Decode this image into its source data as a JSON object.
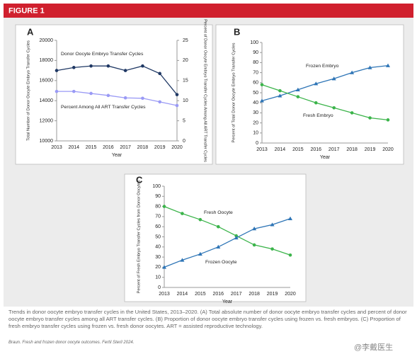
{
  "header": "FIGURE 1",
  "caption": "Trends in donor oocyte embryo transfer cycles in the United States, 2013–2020. (A) Total absolute number of donor oocyte embryo transfer cycles and percent of donor oocyte embryo transfer cycles among all ART transfer cycles. (B) Proportion of donor oocyte embryo transfer cycles using frozen vs. fresh embryos. (C) Proportion of fresh embryo transfer cycles using frozen vs. fresh donor oocytes. ART = assisted reproductive technology.",
  "citation": "Braun. Fresh and frozen donor oocyte outcomes. Fertil Steril 2024.",
  "watermark": "@李戴医生",
  "chart_data": [
    {
      "type": "line",
      "panel": "A",
      "x_label": "Year",
      "y_label": "Total Number of Donor Oocyte Embryo Transfer Cycles",
      "y2_label": "Percent of Donor Oocyte Embryo Transfer Cycles Among All ART Transfer Cycles",
      "categories": [
        "2013",
        "2014",
        "2015",
        "2016",
        "2017",
        "2018",
        "2019",
        "2020"
      ],
      "ylim": [
        10000,
        20000
      ],
      "yticks": [
        10000,
        12000,
        14000,
        16000,
        18000,
        20000
      ],
      "y2lim": [
        0,
        25
      ],
      "y2ticks": [
        0,
        5,
        10,
        15,
        20,
        25
      ],
      "series": [
        {
          "name": "Donor Oocyte Embryo Transfer Cycles",
          "color": "#1f3864",
          "marker": "circle",
          "values": [
            17000,
            17300,
            17450,
            17450,
            17000,
            17450,
            16700,
            14600
          ]
        },
        {
          "name": "Percent Among All ART Transfer Cycles",
          "color": "#9a9af5",
          "marker": "circle",
          "axis": "y2",
          "values": [
            12.3,
            12.3,
            11.8,
            11.3,
            10.7,
            10.6,
            9.7,
            8.8
          ]
        }
      ]
    },
    {
      "type": "line",
      "panel": "B",
      "x_label": "Year",
      "y_label": "Percent of Total Donor Oocyte Embryo Transfer Cycles",
      "categories": [
        "2013",
        "2014",
        "2015",
        "2016",
        "2017",
        "2018",
        "2019",
        "2020"
      ],
      "ylim": [
        0,
        100
      ],
      "yticks": [
        0,
        10,
        20,
        30,
        40,
        50,
        60,
        70,
        80,
        90,
        100
      ],
      "series": [
        {
          "name": "Frozen Embryo",
          "color": "#2e75b6",
          "marker": "triangle",
          "values": [
            42,
            47,
            53,
            59,
            64,
            70,
            75,
            77
          ]
        },
        {
          "name": "Fresh Embryo",
          "color": "#3cb44b",
          "marker": "circle",
          "values": [
            58,
            52,
            46,
            40,
            35,
            30,
            25,
            23
          ]
        }
      ]
    },
    {
      "type": "line",
      "panel": "C",
      "x_label": "Year",
      "y_label": "Percent of Fresh Embryo Transfer Cycles from Donor Oocytes",
      "categories": [
        "2013",
        "2014",
        "2015",
        "2016",
        "2017",
        "2018",
        "2019",
        "2020"
      ],
      "ylim": [
        0,
        100
      ],
      "yticks": [
        0,
        10,
        20,
        30,
        40,
        50,
        60,
        70,
        80,
        90,
        100
      ],
      "series": [
        {
          "name": "Fresh Oocyte",
          "color": "#3cb44b",
          "marker": "circle",
          "values": [
            80,
            73,
            67,
            60,
            51,
            42,
            38,
            32
          ]
        },
        {
          "name": "Frozen Oocyte",
          "color": "#2e75b6",
          "marker": "triangle",
          "values": [
            20,
            27,
            33,
            40,
            49,
            58,
            62,
            68
          ]
        }
      ]
    }
  ]
}
